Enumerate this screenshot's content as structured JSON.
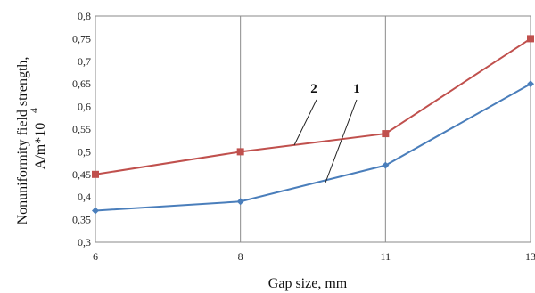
{
  "chart_data": {
    "type": "line",
    "x": [
      "6",
      "8",
      "11",
      "13"
    ],
    "series": [
      {
        "name": "2",
        "values": [
          0.45,
          0.5,
          0.54,
          0.75
        ],
        "color": "#c0504d",
        "marker": "square"
      },
      {
        "name": "1",
        "values": [
          0.37,
          0.39,
          0.47,
          0.65
        ],
        "color": "#4a7ebb",
        "marker": "diamond"
      }
    ],
    "title": "",
    "xlabel": "Gap size, mm",
    "ylabel_line1": "Nonuniformity  field strength,",
    "ylabel_line2": "A/m*10",
    "ylabel_exponent": "4",
    "ylim": [
      0.3,
      0.8
    ],
    "yticks": [
      "0,3",
      "0,35",
      "0,4",
      "0,45",
      "0,5",
      "0,55",
      "0,6",
      "0,65",
      "0,7",
      "0,75",
      "0,8"
    ],
    "grid": "vertical",
    "series_labels_on_chart": [
      "2",
      "1"
    ]
  }
}
